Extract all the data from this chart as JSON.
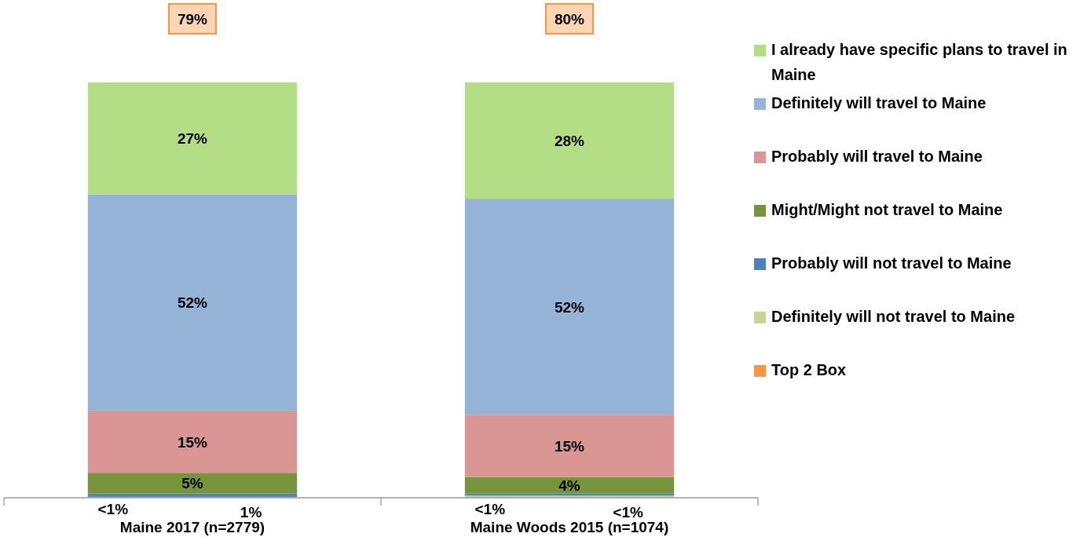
{
  "chart_data": {
    "type": "bar",
    "stacked": true,
    "categories": [
      "Maine 2017 (n=2779)",
      "Maine Woods 2015 (n=1074)"
    ],
    "series": [
      {
        "name": "Definitely will not travel to Maine",
        "color": "#c3d69b",
        "values": [
          0.2,
          0.5
        ],
        "value_labels": [
          "<1%",
          "<1%"
        ]
      },
      {
        "name": "Probably will not travel to Maine",
        "color": "#4f81bd",
        "values": [
          0.8,
          0.5
        ],
        "value_labels": [
          "1%",
          "<1%"
        ]
      },
      {
        "name": "Might/Might not travel to Maine",
        "color": "#77933c",
        "values": [
          5,
          4
        ],
        "value_labels": [
          "5%",
          "4%"
        ]
      },
      {
        "name": "Probably will travel to Maine",
        "color": "#d99694",
        "values": [
          15,
          15
        ],
        "value_labels": [
          "15%",
          "15%"
        ]
      },
      {
        "name": "Definitely will travel to Maine",
        "color": "#95b3d7",
        "values": [
          52,
          52
        ],
        "value_labels": [
          "52%",
          "52%"
        ]
      },
      {
        "name": "I already have specific plans to travel in Maine",
        "color": "#b3de86",
        "values": [
          27,
          28
        ],
        "value_labels": [
          "27%",
          "28%"
        ]
      },
      {
        "name": "Top 2 Box",
        "color": "#f79646",
        "values": [
          null,
          null
        ]
      }
    ],
    "annotations": [
      "79%",
      "80%"
    ],
    "legend": "right"
  }
}
